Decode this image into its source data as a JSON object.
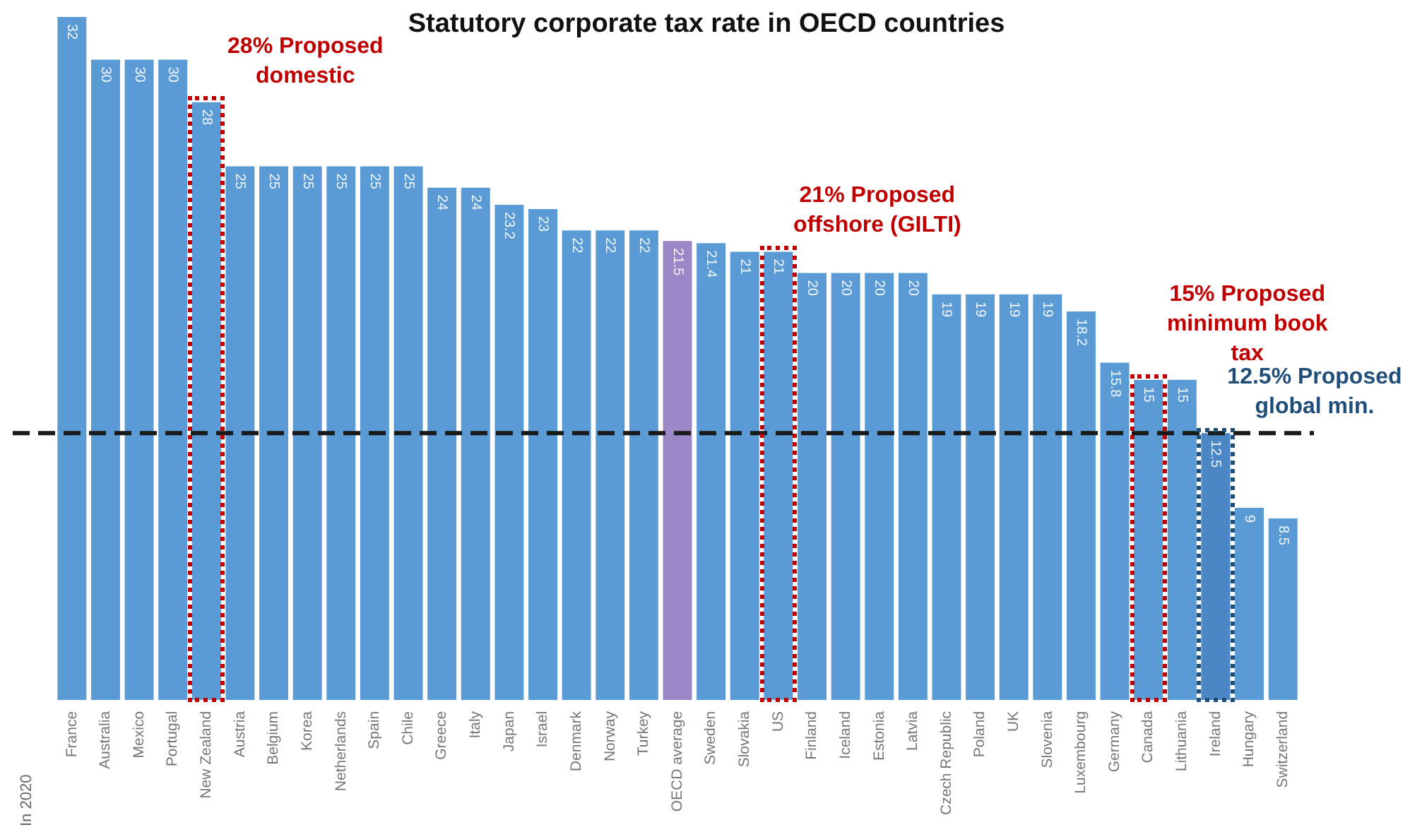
{
  "chart_data": {
    "type": "bar",
    "title": "Statutory corporate tax rate in OECD countries",
    "categories": [
      "France",
      "Australia",
      "Mexico",
      "Portugal",
      "New Zealand",
      "Austria",
      "Belgium",
      "Korea",
      "Netherlands",
      "Spain",
      "Chile",
      "Greece",
      "Italy",
      "Japan",
      "Israel",
      "Denmark",
      "Norway",
      "Turkey",
      "OECD average",
      "Sweden",
      "Slovakia",
      "US",
      "Finland",
      "Iceland",
      "Estonia",
      "Latvia",
      "Czech Republic",
      "Poland",
      "UK",
      "Slovenia",
      "Luxembourg",
      "Germany",
      "Canada",
      "Lithuania",
      "Ireland",
      "Hungary",
      "Switzerland"
    ],
    "values": [
      32,
      30,
      30,
      30,
      28,
      25,
      25,
      25,
      25,
      25,
      25,
      24,
      24,
      23.2,
      23,
      22,
      22,
      22,
      21.5,
      21.4,
      21,
      21,
      20,
      20,
      20,
      20,
      19,
      19,
      19,
      19,
      18.2,
      15.8,
      15,
      15,
      12.5,
      9,
      8.5
    ],
    "colors": [
      "#5b9bd5",
      "#5b9bd5",
      "#5b9bd5",
      "#5b9bd5",
      "#5b9bd5",
      "#5b9bd5",
      "#5b9bd5",
      "#5b9bd5",
      "#5b9bd5",
      "#5b9bd5",
      "#5b9bd5",
      "#5b9bd5",
      "#5b9bd5",
      "#5b9bd5",
      "#5b9bd5",
      "#5b9bd5",
      "#5b9bd5",
      "#5b9bd5",
      "#9b87c6",
      "#5b9bd5",
      "#5b9bd5",
      "#5b9bd5",
      "#5b9bd5",
      "#5b9bd5",
      "#5b9bd5",
      "#5b9bd5",
      "#5b9bd5",
      "#5b9bd5",
      "#5b9bd5",
      "#5b9bd5",
      "#5b9bd5",
      "#5b9bd5",
      "#5b9bd5",
      "#5b9bd5",
      "#4a87c4",
      "#5b9bd5",
      "#5b9bd5"
    ],
    "ylim": [
      0,
      32
    ],
    "tick_labels": "x",
    "grid": false,
    "legend": false,
    "data_labels": true,
    "ref_lines": [
      {
        "axis": "y",
        "value": 12.5,
        "color": "#1a1a1a",
        "line_style": "dashed"
      }
    ],
    "annotations": [
      "In 2020",
      {
        "text": "28% Proposed domestic",
        "x": "New Zealand",
        "y": 28
      },
      {
        "text": "21% Proposed offshore (GILTI)",
        "x": "US",
        "y": 21
      },
      {
        "text": "15% Proposed minimum book tax",
        "x": "Canada",
        "y": 15
      },
      {
        "text": "12.5% Proposed global min.",
        "x": "Ireland",
        "y": 12.5
      }
    ]
  }
}
